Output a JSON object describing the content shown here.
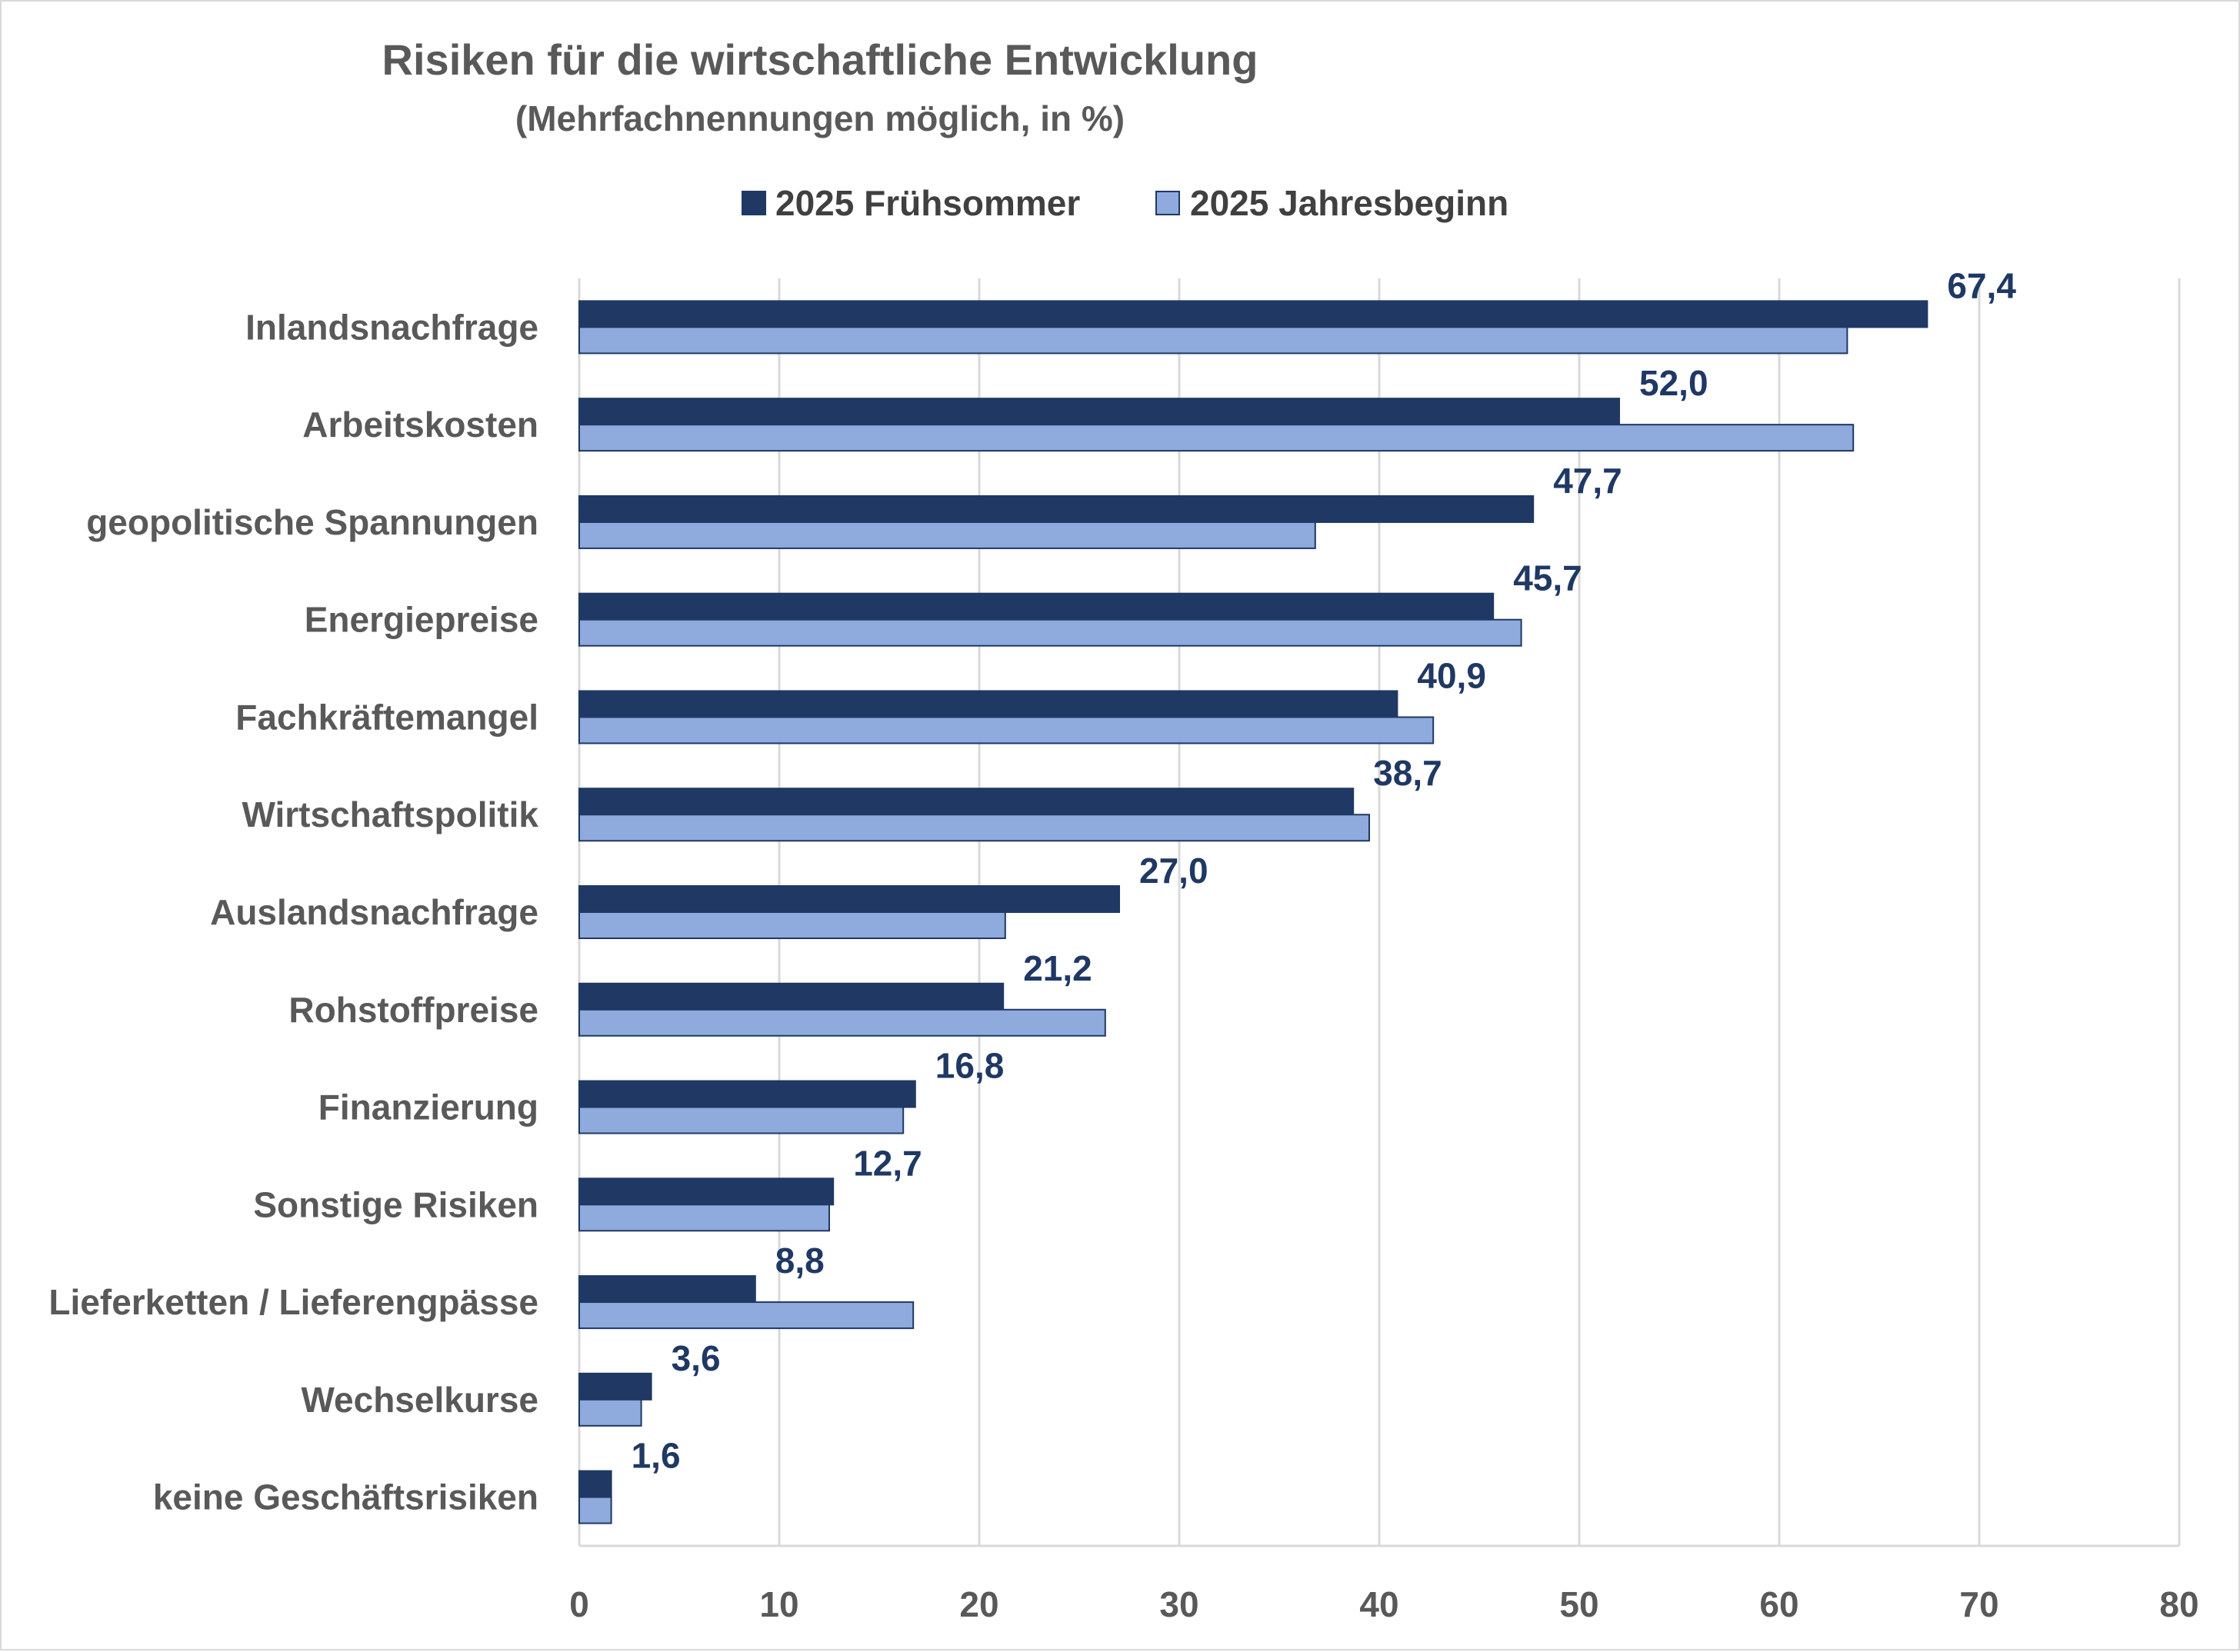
{
  "chart_data": {
    "type": "bar",
    "orientation": "horizontal",
    "title": "Risiken für die wirtschaftliche Entwicklung",
    "subtitle": "(Mehrfachnennungen möglich, in %)",
    "categories": [
      "Inlandsnachfrage",
      "Arbeitskosten",
      "geopolitische Spannungen",
      "Energiepreise",
      "Fachkräftemangel",
      "Wirtschaftspolitik",
      "Auslandsnachfrage",
      "Rohstoffpreise",
      "Finanzierung",
      "Sonstige Risiken",
      "Lieferketten / Lieferengpässe",
      "Wechselkurse",
      "keine Geschäftsrisiken"
    ],
    "series": [
      {
        "name": "2025 Frühsommer",
        "color": "#203864",
        "values": [
          67.4,
          52.0,
          47.7,
          45.7,
          40.9,
          38.7,
          27.0,
          21.2,
          16.8,
          12.7,
          8.8,
          3.6,
          1.6
        ],
        "labels": [
          "67,4",
          "52,0",
          "47,7",
          "45,7",
          "40,9",
          "38,7",
          "27,0",
          "21,2",
          "16,8",
          "12,7",
          "8,8",
          "3,6",
          "1,6"
        ]
      },
      {
        "name": "2025 Jahresbeginn",
        "color": "#8faadc",
        "values": [
          63.4,
          63.7,
          36.8,
          47.1,
          42.7,
          39.5,
          21.3,
          26.3,
          16.2,
          12.5,
          16.7,
          3.1,
          1.6
        ]
      }
    ],
    "xlim": [
      0,
      80
    ],
    "xticks": [
      0,
      10,
      20,
      30,
      40,
      50,
      60,
      70,
      80
    ],
    "grid": "vertical",
    "legend_position": "top"
  }
}
